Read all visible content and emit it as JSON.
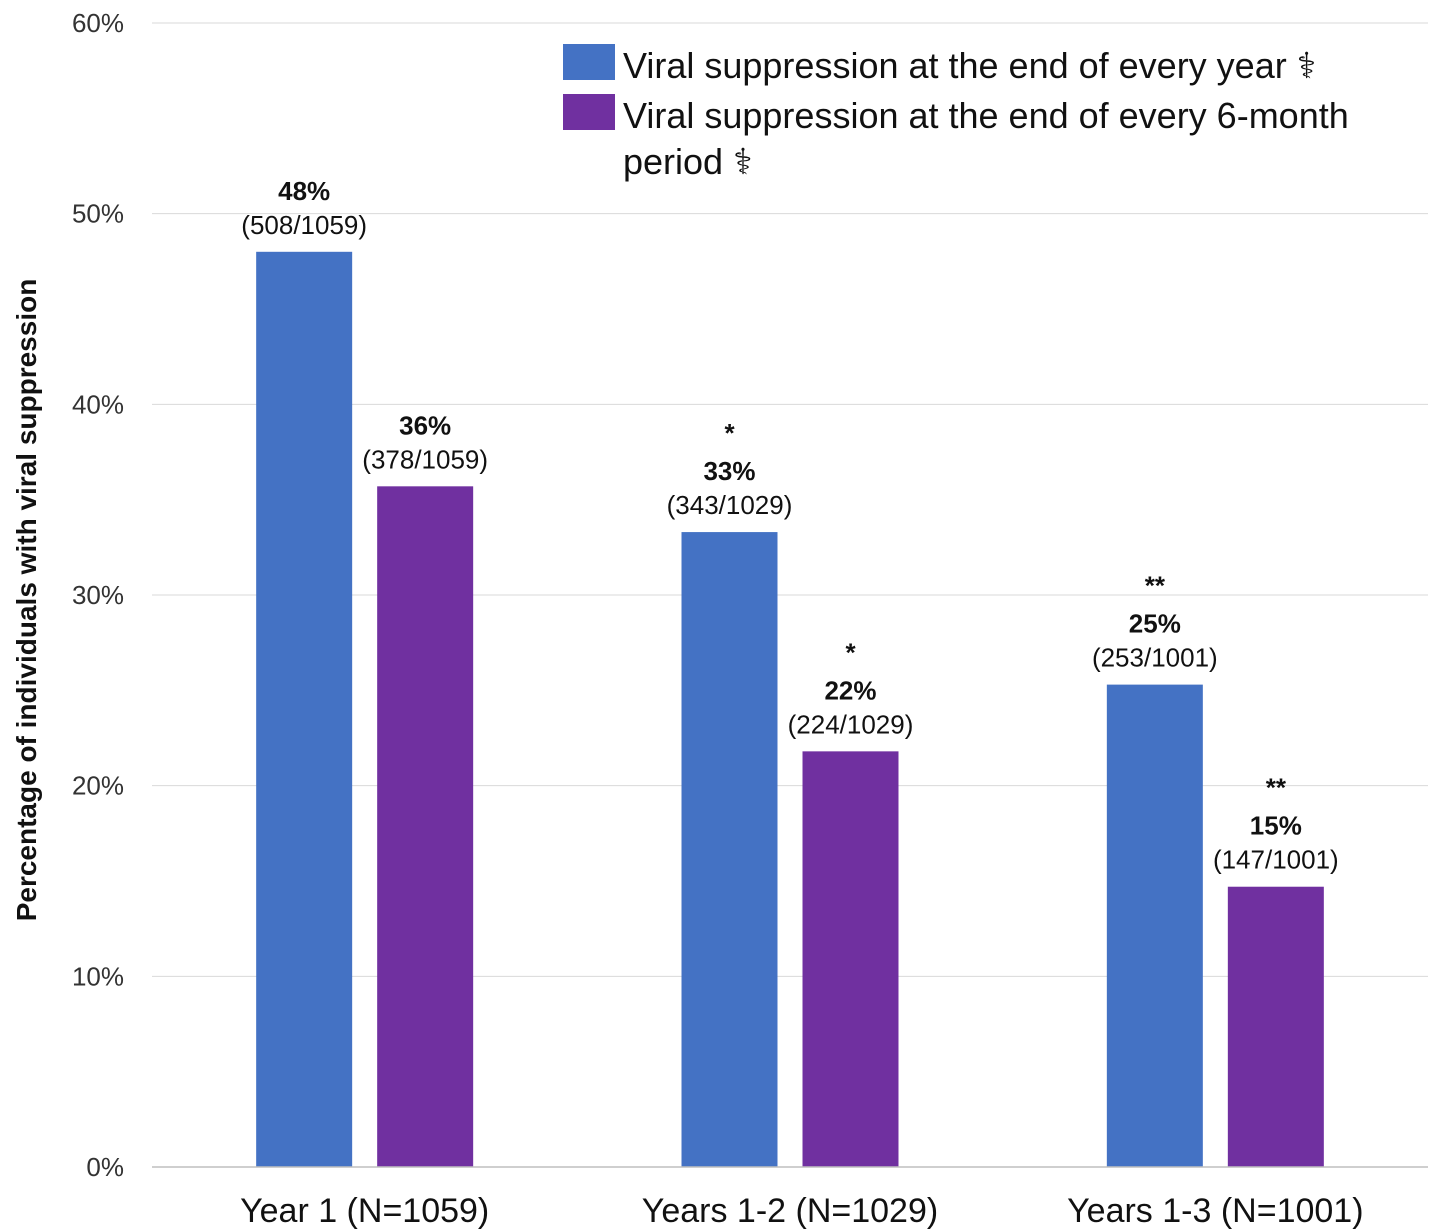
{
  "chart_data": {
    "type": "bar",
    "ylabel": "Percentage of individuals with viral suppression",
    "ylim": [
      0,
      60
    ],
    "yticks": [
      "0%",
      "10%",
      "20%",
      "30%",
      "40%",
      "50%",
      "60%"
    ],
    "ytick_values": [
      0,
      10,
      20,
      30,
      40,
      50,
      60
    ],
    "categories": [
      "Year 1 (N=1059)",
      "Years 1-2 (N=1029)",
      "Years 1-3 (N=1001)"
    ],
    "grid": true,
    "legend_position": "top-right",
    "series": [
      {
        "name": "Viral suppression at the end of every year ⚕",
        "legend_lines": [
          "Viral suppression at the end of every year ⚕"
        ],
        "color": "#4472C4",
        "values": [
          48,
          33.3,
          25.3
        ],
        "pct_labels": [
          "48%",
          "33%",
          "25%"
        ],
        "frac_labels": [
          "(508/1059)",
          "(343/1029)",
          "(253/1001)"
        ],
        "sig_labels": [
          "",
          "*",
          "**"
        ]
      },
      {
        "name": "Viral suppression at the end of every 6-month period ⚕",
        "legend_lines": [
          "Viral suppression at the end of every 6-month",
          "period ⚕"
        ],
        "color": "#7030A0",
        "values": [
          35.7,
          21.8,
          14.7
        ],
        "pct_labels": [
          "36%",
          "22%",
          "15%"
        ],
        "frac_labels": [
          "(378/1059)",
          "(224/1029)",
          "(147/1001)"
        ],
        "sig_labels": [
          "",
          "*",
          "**"
        ]
      }
    ]
  }
}
